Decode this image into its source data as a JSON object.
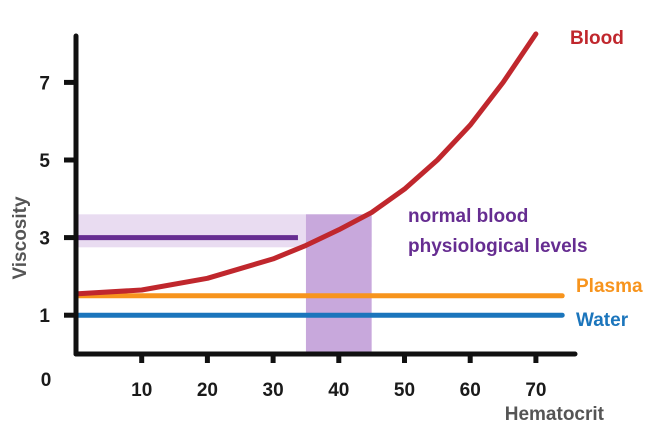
{
  "chart_data": {
    "type": "line",
    "xlabel": "Hematocrit",
    "ylabel": "Viscosity",
    "origin_label": "0",
    "x_ticks": [
      10,
      20,
      30,
      40,
      50,
      60,
      70
    ],
    "y_ticks": [
      1,
      3,
      5,
      7
    ],
    "xlim": [
      0,
      75
    ],
    "ylim": [
      0,
      8
    ],
    "grid": false,
    "series": [
      {
        "name": "Blood",
        "color": "#c0272d",
        "x": [
          0,
          10,
          20,
          30,
          35,
          40,
          45,
          50,
          55,
          60,
          65,
          70
        ],
        "y": [
          1.55,
          1.65,
          1.95,
          2.45,
          2.8,
          3.2,
          3.65,
          4.25,
          5.0,
          5.9,
          7.0,
          8.25
        ]
      },
      {
        "name": "Plasma",
        "color": "#f7941d",
        "x": [
          0,
          74
        ],
        "y": [
          1.5,
          1.5
        ]
      },
      {
        "name": "Water",
        "color": "#1b75bc",
        "x": [
          0,
          74
        ],
        "y": [
          1.0,
          1.0
        ]
      }
    ],
    "annotations": [
      {
        "text_lines": [
          "normal blood",
          "physiological levels"
        ],
        "color": "#662d91",
        "x_range": [
          35,
          45
        ],
        "y_range": [
          2.75,
          3.6
        ],
        "level_y": 3.0
      }
    ]
  }
}
